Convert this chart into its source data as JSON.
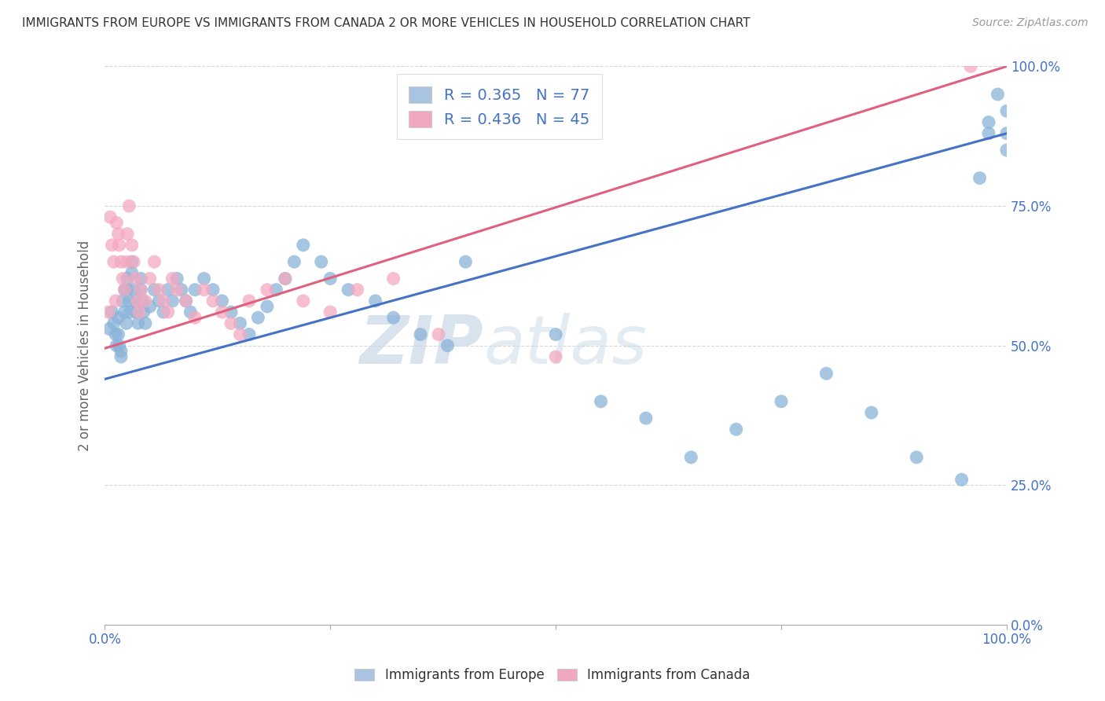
{
  "title": "IMMIGRANTS FROM EUROPE VS IMMIGRANTS FROM CANADA 2 OR MORE VEHICLES IN HOUSEHOLD CORRELATION CHART",
  "source": "Source: ZipAtlas.com",
  "ylabel": "2 or more Vehicles in Household",
  "xmin": 0.0,
  "xmax": 1.0,
  "ymin": 0.0,
  "ymax": 1.0,
  "ytick_positions": [
    0.0,
    0.25,
    0.5,
    0.75,
    1.0
  ],
  "ytick_labels": [
    "0.0%",
    "25.0%",
    "50.0%",
    "75.0%",
    "100.0%"
  ],
  "blue_color": "#8ab4d8",
  "pink_color": "#f4a8c0",
  "line_blue": "#4472c4",
  "line_pink": "#e06080",
  "text_color": "#4472c4",
  "legend_box_color_blue": "#a8c4e0",
  "legend_box_color_pink": "#f0a8c0",
  "legend_r1": "R = 0.365",
  "legend_n1": "N = 77",
  "legend_r2": "R = 0.436",
  "legend_n2": "N = 45",
  "grid_color": "#d8d8d8",
  "background_color": "#ffffff",
  "blue_line_y_start": 0.44,
  "blue_line_y_end": 0.88,
  "pink_line_y_start": 0.495,
  "pink_line_y_end": 1.0,
  "blue_x": [
    0.005,
    0.008,
    0.01,
    0.012,
    0.013,
    0.015,
    0.015,
    0.016,
    0.018,
    0.018,
    0.02,
    0.022,
    0.022,
    0.024,
    0.025,
    0.025,
    0.027,
    0.028,
    0.03,
    0.03,
    0.032,
    0.034,
    0.035,
    0.037,
    0.04,
    0.04,
    0.042,
    0.043,
    0.045,
    0.05,
    0.055,
    0.06,
    0.065,
    0.07,
    0.075,
    0.08,
    0.085,
    0.09,
    0.095,
    0.1,
    0.11,
    0.12,
    0.13,
    0.14,
    0.15,
    0.16,
    0.17,
    0.18,
    0.19,
    0.2,
    0.21,
    0.22,
    0.24,
    0.25,
    0.27,
    0.3,
    0.32,
    0.35,
    0.38,
    0.4,
    0.5,
    0.55,
    0.6,
    0.65,
    0.7,
    0.75,
    0.8,
    0.85,
    0.9,
    0.95,
    0.97,
    0.98,
    0.98,
    0.99,
    1.0,
    1.0,
    1.0
  ],
  "blue_y": [
    0.53,
    0.56,
    0.54,
    0.52,
    0.5,
    0.55,
    0.52,
    0.5,
    0.49,
    0.48,
    0.58,
    0.6,
    0.56,
    0.54,
    0.62,
    0.6,
    0.58,
    0.56,
    0.65,
    0.63,
    0.6,
    0.58,
    0.56,
    0.54,
    0.62,
    0.6,
    0.58,
    0.56,
    0.54,
    0.57,
    0.6,
    0.58,
    0.56,
    0.6,
    0.58,
    0.62,
    0.6,
    0.58,
    0.56,
    0.6,
    0.62,
    0.6,
    0.58,
    0.56,
    0.54,
    0.52,
    0.55,
    0.57,
    0.6,
    0.62,
    0.65,
    0.68,
    0.65,
    0.62,
    0.6,
    0.58,
    0.55,
    0.52,
    0.5,
    0.65,
    0.52,
    0.4,
    0.37,
    0.3,
    0.35,
    0.4,
    0.45,
    0.38,
    0.3,
    0.26,
    0.8,
    0.9,
    0.88,
    0.95,
    0.92,
    0.88,
    0.85
  ],
  "pink_x": [
    0.004,
    0.006,
    0.008,
    0.01,
    0.012,
    0.013,
    0.015,
    0.016,
    0.018,
    0.02,
    0.022,
    0.024,
    0.025,
    0.027,
    0.03,
    0.032,
    0.034,
    0.036,
    0.038,
    0.04,
    0.045,
    0.05,
    0.055,
    0.06,
    0.065,
    0.07,
    0.075,
    0.08,
    0.09,
    0.1,
    0.11,
    0.12,
    0.13,
    0.14,
    0.15,
    0.16,
    0.18,
    0.2,
    0.22,
    0.25,
    0.28,
    0.32,
    0.37,
    0.5,
    0.96
  ],
  "pink_y": [
    0.56,
    0.73,
    0.68,
    0.65,
    0.58,
    0.72,
    0.7,
    0.68,
    0.65,
    0.62,
    0.6,
    0.65,
    0.7,
    0.75,
    0.68,
    0.65,
    0.62,
    0.58,
    0.56,
    0.6,
    0.58,
    0.62,
    0.65,
    0.6,
    0.58,
    0.56,
    0.62,
    0.6,
    0.58,
    0.55,
    0.6,
    0.58,
    0.56,
    0.54,
    0.52,
    0.58,
    0.6,
    0.62,
    0.58,
    0.56,
    0.6,
    0.62,
    0.52,
    0.48,
    1.0
  ],
  "watermark_zip": "ZIP",
  "watermark_atlas": "atlas"
}
